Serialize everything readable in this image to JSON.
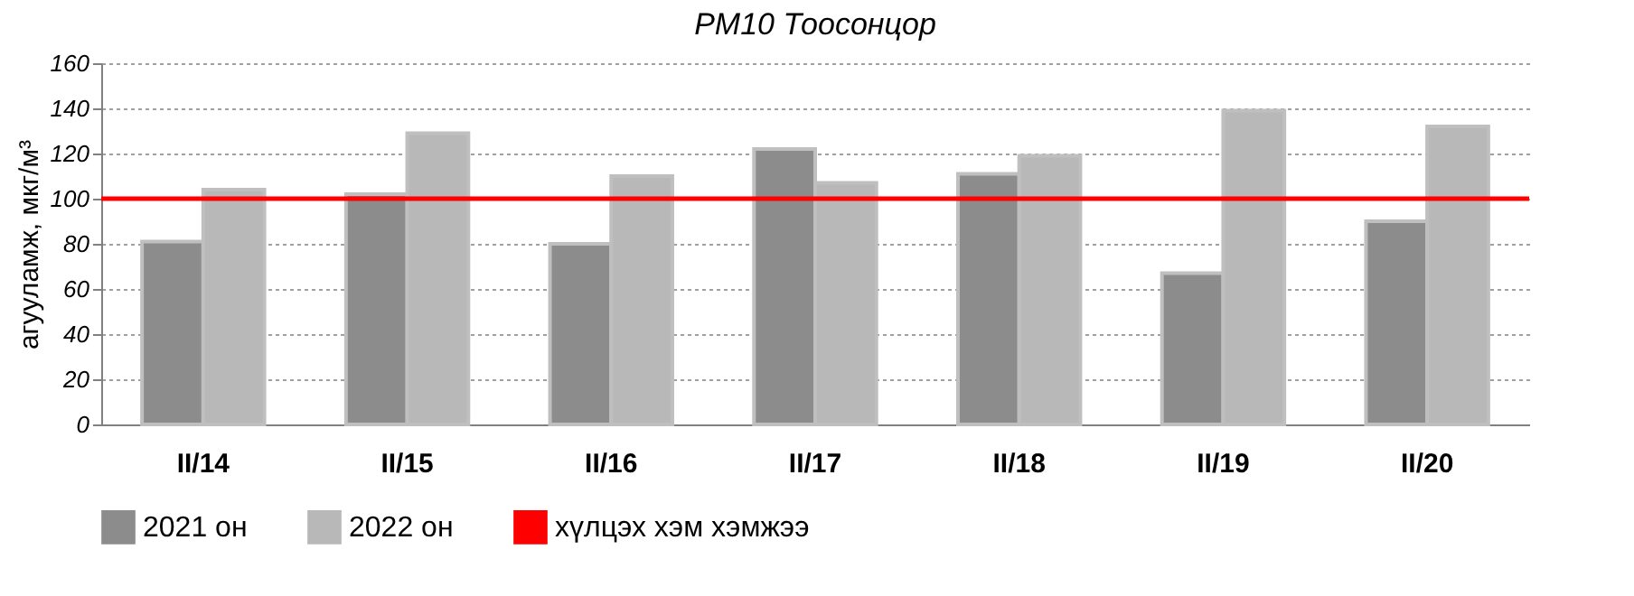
{
  "chart_data": {
    "type": "bar",
    "title": "PM10 Тоосонцор",
    "ylabel": "агууламж, мкг/м³",
    "categories": [
      "II/14",
      "II/15",
      "II/16",
      "II/17",
      "II/18",
      "II/19",
      "II/20"
    ],
    "series": [
      {
        "name": "2021 он",
        "color": "#8c8c8c",
        "values": [
          81,
          102,
          80,
          122,
          111,
          67,
          90
        ]
      },
      {
        "name": "2022 он",
        "color": "#b8b8b8",
        "values": [
          104,
          129,
          110,
          107,
          119,
          139,
          132
        ]
      }
    ],
    "ref_lines": [
      {
        "axis": "y",
        "value": 100,
        "label": "хүлцэх хэм хэмжээ",
        "color": "#ff0000"
      }
    ],
    "ylim": [
      0,
      160
    ],
    "yticks": [
      0,
      20,
      40,
      60,
      80,
      100,
      120,
      140,
      160
    ],
    "grid": "y",
    "legend": "bottom"
  }
}
